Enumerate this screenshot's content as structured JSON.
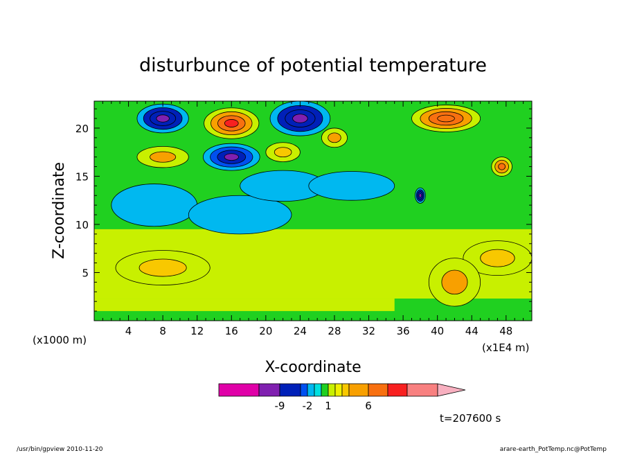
{
  "chart_data": {
    "type": "heatmap",
    "title": "disturbunce of potential temperature",
    "xlabel": "X-coordinate",
    "ylabel": "Z-coordinate",
    "x_unit": "(x1E4 m)",
    "y_unit": "(x1000 m)",
    "xlim": [
      0,
      51
    ],
    "ylim": [
      0,
      22.8
    ],
    "x_ticks": [
      4,
      8,
      12,
      16,
      20,
      24,
      28,
      32,
      36,
      40,
      44,
      48
    ],
    "y_ticks": [
      5,
      10,
      15,
      20
    ],
    "time_label": "t=207600 s",
    "colorbar": {
      "colors": [
        "#e000a8",
        "#8020b0",
        "#0020b8",
        "#0050f0",
        "#00b8f0",
        "#00e0e0",
        "#20d020",
        "#c8f000",
        "#f0f000",
        "#f8c800",
        "#f8a000",
        "#f87010",
        "#f82020",
        "#f88080",
        "#f8b0c0"
      ],
      "tick_labels": [
        "-9",
        "-2",
        "1",
        "6"
      ]
    },
    "anomalies": [
      {
        "x": 8,
        "z": 21,
        "rx": 3,
        "rz": 1.5,
        "v": -6
      },
      {
        "x": 16,
        "z": 20.5,
        "rx": 3.2,
        "rz": 1.6,
        "v": 6
      },
      {
        "x": 24,
        "z": 21,
        "rx": 3.5,
        "rz": 1.8,
        "v": -6
      },
      {
        "x": 28,
        "z": 19,
        "rx": 1.5,
        "rz": 1.0,
        "v": 3
      },
      {
        "x": 41,
        "z": 21,
        "rx": 4.0,
        "rz": 1.4,
        "v": 5
      },
      {
        "x": 16,
        "z": 17,
        "rx": 3.3,
        "rz": 1.4,
        "v": -5
      },
      {
        "x": 8,
        "z": 17,
        "rx": 3.0,
        "rz": 1.1,
        "v": 3
      },
      {
        "x": 22,
        "z": 17.5,
        "rx": 2.0,
        "rz": 1.0,
        "v": 2
      },
      {
        "x": 7,
        "z": 12,
        "rx": 5.0,
        "rz": 2.2,
        "v": -1
      },
      {
        "x": 17,
        "z": 11,
        "rx": 6.0,
        "rz": 2.0,
        "v": -1
      },
      {
        "x": 22,
        "z": 14,
        "rx": 5.0,
        "rz": 1.6,
        "v": -1
      },
      {
        "x": 30,
        "z": 14,
        "rx": 5.0,
        "rz": 1.5,
        "v": -1
      },
      {
        "x": 8,
        "z": 5.5,
        "rx": 5.5,
        "rz": 1.8,
        "v": 2.2
      },
      {
        "x": 47,
        "z": 6.5,
        "rx": 4.0,
        "rz": 1.8,
        "v": 2.2
      },
      {
        "x": 42,
        "z": 4,
        "rx": 3.0,
        "rz": 2.5,
        "v": 2.5
      },
      {
        "x": 47.5,
        "z": 16,
        "rx": 1.2,
        "rz": 1.0,
        "v": 4
      },
      {
        "x": 38,
        "z": 13,
        "rx": 0.6,
        "rz": 0.8,
        "v": -6
      }
    ]
  },
  "footer": {
    "left": "/usr/bin/gpview   2010-11-20",
    "right": "arare-earth_PotTemp.nc@PotTemp"
  }
}
